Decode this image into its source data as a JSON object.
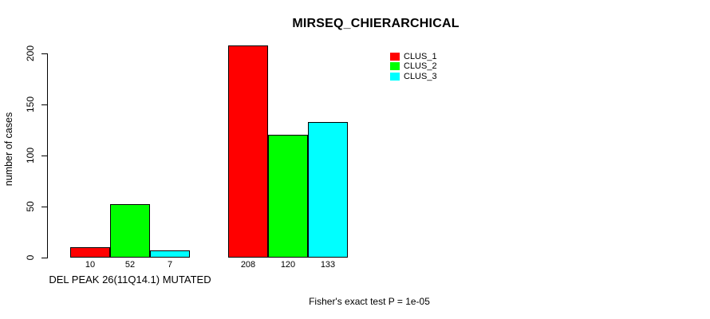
{
  "chart_data": {
    "type": "bar",
    "title": "MIRSEQ_CHIERARCHICAL",
    "ylabel": "number of cases",
    "yticks": [
      0,
      50,
      100,
      150,
      200
    ],
    "ylim": [
      0,
      208
    ],
    "grid": false,
    "legend_position": "top-right",
    "legend": [
      {
        "name": "CLUS_1",
        "color": "#ff0000"
      },
      {
        "name": "CLUS_2",
        "color": "#00ff00"
      },
      {
        "name": "CLUS_3",
        "color": "#00ffff"
      }
    ],
    "bar_colors": [
      "#ff0000",
      "#00ff00",
      "#00ffff"
    ],
    "series_names": [
      "CLUS_1",
      "CLUS_2",
      "CLUS_3"
    ],
    "groups": [
      {
        "label": "DEL PEAK 26(11Q14.1) MUTATED",
        "values": [
          10,
          52,
          7
        ]
      },
      {
        "label": "",
        "values": [
          208,
          120,
          133
        ]
      }
    ],
    "annotation": "Fisher's exact test P = 1e-05",
    "axis_color": "#000000"
  }
}
